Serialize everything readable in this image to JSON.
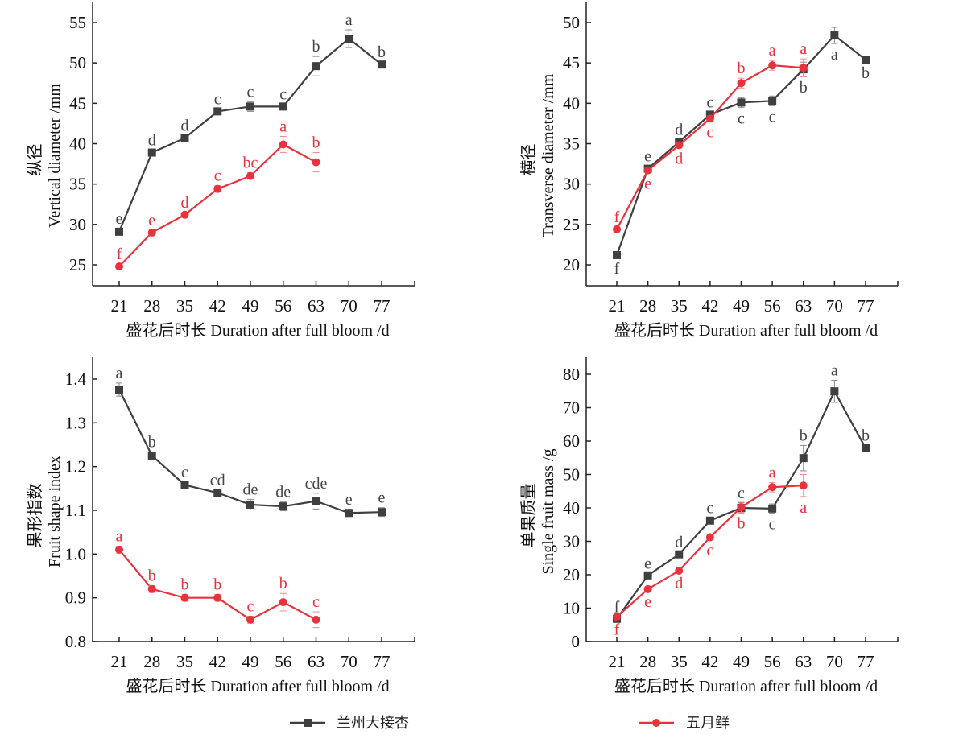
{
  "colors": {
    "series1": "#3f3f3f",
    "series2": "#e8323c"
  },
  "legend": {
    "items": [
      {
        "label": "兰州大接杏",
        "marker": "square",
        "color": "#3f3f3f"
      },
      {
        "label": "五月鲜",
        "marker": "circle",
        "color": "#e8323c"
      }
    ],
    "placement": "bottom-center"
  },
  "chart_data": [
    {
      "type": "line",
      "id": "vertical",
      "ylabel_cn": "纵径",
      "ylabel": "Vertical diameter /mm",
      "xlabel": "盛花后时长 Duration after full bloom /d",
      "categories": [
        "21",
        "28",
        "35",
        "42",
        "49",
        "56",
        "63",
        "70",
        "77"
      ],
      "yticks": [
        25,
        30,
        35,
        40,
        45,
        50,
        55
      ],
      "ylim": [
        22.5,
        57
      ],
      "grid": false,
      "series": [
        {
          "name": "兰州大接杏",
          "values": [
            29.1,
            38.9,
            40.7,
            44.0,
            44.6,
            44.6,
            49.6,
            53.0,
            49.8
          ],
          "errors": [
            0.4,
            0.3,
            0.3,
            0.3,
            0.6,
            0.3,
            1.2,
            1.1,
            0.3
          ],
          "letters": [
            "e",
            "d",
            "d",
            "c",
            "c",
            "c",
            "b",
            "a",
            "b"
          ],
          "letter_pos": "above"
        },
        {
          "name": "五月鲜",
          "values": [
            24.8,
            29.0,
            31.2,
            34.4,
            36.0,
            39.9,
            37.7,
            null,
            null
          ],
          "errors": [
            0.3,
            0.3,
            0.3,
            0.4,
            0.4,
            1.0,
            1.2,
            null,
            null
          ],
          "letters": [
            "f",
            "e",
            "d",
            "c",
            "bc",
            "a",
            "b",
            null,
            null
          ],
          "letter_pos": "above"
        }
      ]
    },
    {
      "type": "line",
      "id": "transverse",
      "ylabel_cn": "横径",
      "ylabel": "Transverse diameter /mm",
      "xlabel": "盛花后时长 Duration after full bloom /d",
      "categories": [
        "21",
        "28",
        "35",
        "42",
        "49",
        "56",
        "63",
        "70",
        "77"
      ],
      "yticks": [
        20,
        25,
        30,
        35,
        40,
        45,
        50
      ],
      "ylim": [
        17.5,
        52
      ],
      "grid": false,
      "series": [
        {
          "name": "兰州大接杏",
          "values": [
            21.2,
            31.9,
            35.2,
            38.6,
            40.1,
            40.3,
            44.2,
            48.4,
            45.4
          ],
          "errors": [
            0.3,
            0.3,
            0.3,
            0.3,
            0.6,
            0.6,
            0.9,
            1.0,
            0.3
          ],
          "letters": [
            "f",
            "e",
            "d",
            "c",
            "c",
            "c",
            "b",
            "a",
            "b"
          ],
          "letter_pos": [
            "below",
            "above",
            "above",
            "above",
            "below",
            "below",
            "below",
            "below",
            "below"
          ]
        },
        {
          "name": "五月鲜",
          "values": [
            24.4,
            31.7,
            34.8,
            38.1,
            42.5,
            44.7,
            44.4,
            null,
            null
          ],
          "errors": [
            0.3,
            0.3,
            0.3,
            0.3,
            0.6,
            0.6,
            1.1,
            null,
            null
          ],
          "letters": [
            "f",
            "e",
            "d",
            "c",
            "b",
            "a",
            "a",
            null,
            null
          ],
          "letter_pos": [
            "above",
            "below",
            "below",
            "below",
            "above",
            "above",
            "above",
            null,
            null
          ]
        }
      ]
    },
    {
      "type": "line",
      "id": "shape_index",
      "ylabel_cn": "果形指数",
      "ylabel": "Fruit shape index",
      "xlabel": "盛花后时长 Duration after full bloom /d",
      "categories": [
        "21",
        "28",
        "35",
        "42",
        "49",
        "56",
        "63",
        "70",
        "77"
      ],
      "yticks": [
        0.8,
        0.9,
        1.0,
        1.1,
        1.2,
        1.3,
        1.4
      ],
      "ylim": [
        0.8,
        1.45
      ],
      "grid": false,
      "series": [
        {
          "name": "兰州大接杏",
          "values": [
            1.376,
            1.225,
            1.158,
            1.14,
            1.113,
            1.109,
            1.121,
            1.094,
            1.096
          ],
          "errors": [
            0.015,
            0.008,
            0.006,
            0.006,
            0.012,
            0.01,
            0.018,
            0.008,
            0.01
          ],
          "letters": [
            "a",
            "b",
            "c",
            "cd",
            "de",
            "de",
            "cde",
            "e",
            "e"
          ],
          "letter_pos": "above"
        },
        {
          "name": "五月鲜",
          "values": [
            1.01,
            0.92,
            0.9,
            0.9,
            0.85,
            0.89,
            0.85,
            null,
            null
          ],
          "errors": [
            0.008,
            0.008,
            0.008,
            0.008,
            0.008,
            0.02,
            0.018,
            null,
            null
          ],
          "letters": [
            "a",
            "b",
            "b",
            "b",
            "c",
            "b",
            "c",
            null,
            null
          ],
          "letter_pos": "above"
        }
      ]
    },
    {
      "type": "line",
      "id": "fruit_mass",
      "ylabel_cn": "单果质量",
      "ylabel": "Single fruit mass /g",
      "xlabel": "盛花后时长 Duration after full bloom /d",
      "categories": [
        "21",
        "28",
        "35",
        "42",
        "49",
        "56",
        "63",
        "70",
        "77"
      ],
      "yticks": [
        0,
        10,
        20,
        30,
        40,
        50,
        60,
        70,
        80
      ],
      "ylim": [
        0,
        85
      ],
      "grid": false,
      "series": [
        {
          "name": "兰州大接杏",
          "values": [
            6.8,
            19.8,
            26.1,
            36.2,
            40.0,
            39.8,
            54.9,
            74.9,
            57.9
          ],
          "errors": [
            0.5,
            0.6,
            0.6,
            0.8,
            1.5,
            1.4,
            3.8,
            3.3,
            0.8
          ],
          "letters": [
            "f",
            "e",
            "d",
            "c",
            "c",
            "c",
            "b",
            "a",
            "b"
          ],
          "letter_pos": [
            "above",
            "above",
            "above",
            "above",
            "above",
            "below",
            "above",
            "above",
            "above"
          ]
        },
        {
          "name": "五月鲜",
          "values": [
            7.4,
            15.7,
            21.2,
            31.2,
            40.2,
            46.2,
            46.7,
            null,
            null
          ],
          "errors": [
            0.5,
            0.5,
            0.5,
            0.6,
            1.5,
            1.4,
            3.3,
            null,
            null
          ],
          "letters": [
            "f",
            "e",
            "d",
            "c",
            "b",
            "a",
            "a",
            null,
            null
          ],
          "letter_pos": [
            "below",
            "below",
            "below",
            "below",
            "below",
            "above",
            "below",
            null,
            null
          ]
        }
      ]
    }
  ]
}
